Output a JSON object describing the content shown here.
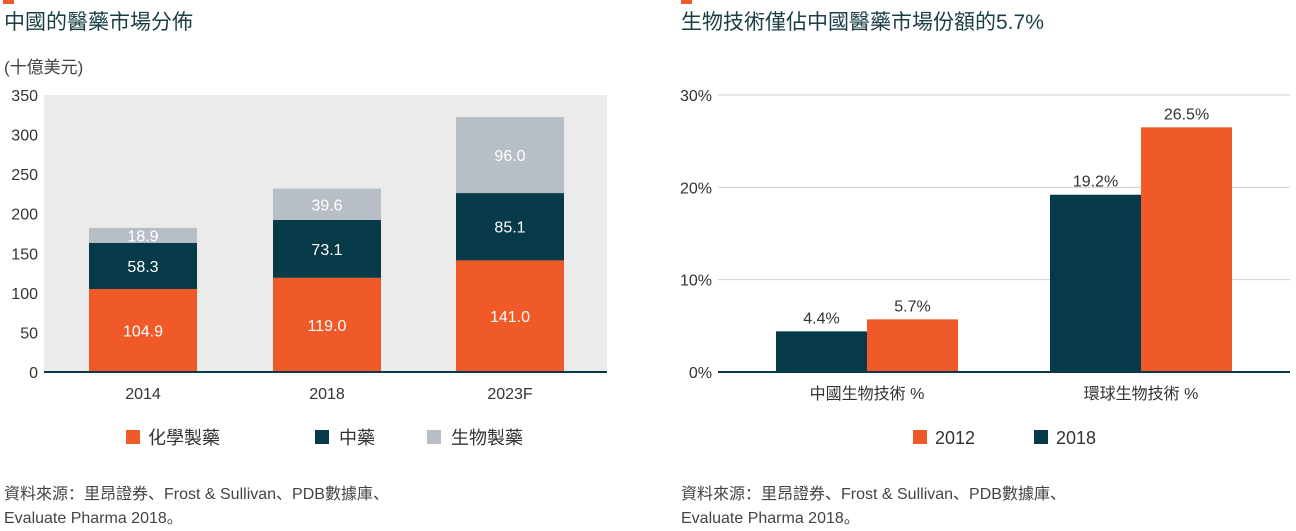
{
  "colors": {
    "orange": "#f05a28",
    "teal": "#073a48",
    "grey": "#b8bec5",
    "band": "#ebebeb",
    "axis": "#073a48"
  },
  "chart_data": [
    {
      "type": "bar",
      "stacked": true,
      "title": "中國的醫藥市場分佈",
      "unit": "(十億美元)",
      "categories": [
        "2014",
        "2018",
        "2023F"
      ],
      "series": [
        {
          "name": "化學製藥",
          "color": "#f05a28",
          "values": [
            104.9,
            119.0,
            141.0
          ],
          "labels": [
            "104.9",
            "119.0",
            "141.0"
          ]
        },
        {
          "name": "中藥",
          "color": "#073a48",
          "values": [
            58.3,
            73.1,
            85.1
          ],
          "labels": [
            "58.3",
            "73.1",
            "85.1"
          ]
        },
        {
          "name": "生物製藥",
          "color": "#b8bec5",
          "values": [
            18.9,
            39.6,
            96.0
          ],
          "labels": [
            "18.9",
            "39.6",
            "96.0"
          ]
        }
      ],
      "ylim": [
        0,
        350
      ],
      "yticks": [
        "0",
        "50",
        "100",
        "150",
        "200",
        "250",
        "300",
        "350"
      ],
      "grid": false,
      "legend": "bottom",
      "source_lines": [
        "資料來源：里昂證券、Frost & Sullivan、PDB數據庫、",
        "Evaluate Pharma 2018。"
      ]
    },
    {
      "type": "bar",
      "stacked": false,
      "title": "生物技術僅佔中國醫藥市場份額的5.7%",
      "categories": [
        "中國生物技術 %",
        "環球生物技術 %"
      ],
      "series": [
        {
          "name": "2012",
          "color": "#f05a28",
          "values": [
            5.7,
            26.5
          ],
          "labels": [
            "5.7%",
            "26.5%"
          ]
        },
        {
          "name": "2018",
          "color": "#073a48",
          "values": [
            4.4,
            19.2
          ],
          "labels": [
            "4.4%",
            "19.2%"
          ]
        }
      ],
      "ylim": [
        0,
        30
      ],
      "yticks": [
        "0%",
        "10%",
        "20%",
        "30%"
      ],
      "grid": true,
      "legend": "bottom",
      "source_lines": [
        "資料來源：里昂證券、Frost & Sullivan、PDB數據庫、",
        "Evaluate Pharma 2018。"
      ]
    }
  ]
}
